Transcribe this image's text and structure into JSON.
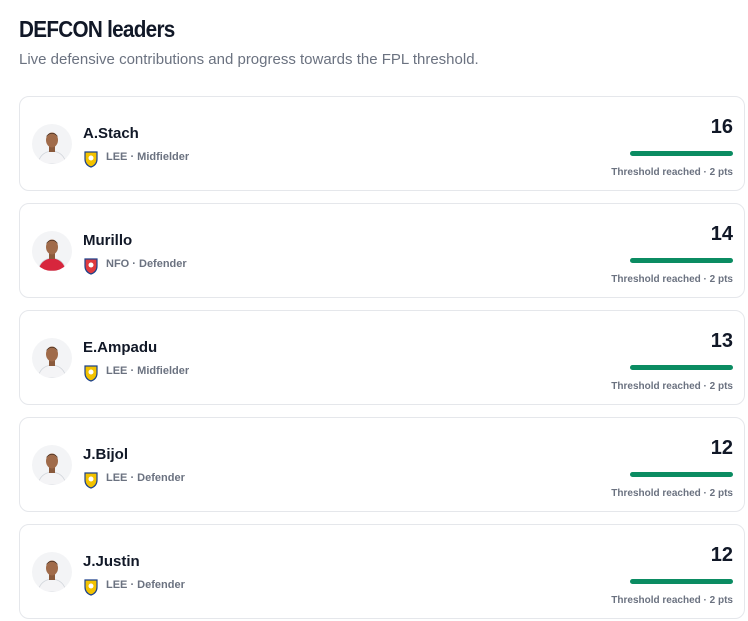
{
  "header": {
    "title": "DEFCON leaders",
    "subtitle": "Live defensive contributions and progress towards the FPL threshold."
  },
  "players": [
    {
      "name": "A.Stach",
      "meta": "LEE · Midfielder",
      "value": 16,
      "status": "Threshold reached · 2 pts",
      "badge_color": "#f2c200",
      "shirt_color": "#f4f4f6"
    },
    {
      "name": "Murillo",
      "meta": "NFO · Defender",
      "value": 14,
      "status": "Threshold reached · 2 pts",
      "badge_color": "#e03a3e",
      "shirt_color": "#d7263d"
    },
    {
      "name": "E.Ampadu",
      "meta": "LEE · Midfielder",
      "value": 13,
      "status": "Threshold reached · 2 pts",
      "badge_color": "#f2c200",
      "shirt_color": "#f4f4f6"
    },
    {
      "name": "J.Bijol",
      "meta": "LEE · Defender",
      "value": 12,
      "status": "Threshold reached · 2 pts",
      "badge_color": "#f2c200",
      "shirt_color": "#f4f4f6"
    },
    {
      "name": "J.Justin",
      "meta": "LEE · Defender",
      "value": 12,
      "status": "Threshold reached · 2 pts",
      "badge_color": "#f2c200",
      "shirt_color": "#f4f4f6"
    }
  ]
}
